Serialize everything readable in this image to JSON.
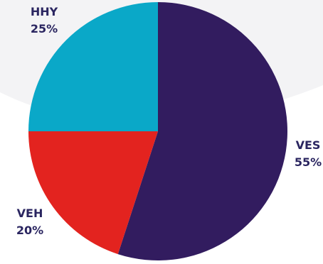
{
  "chart_data": {
    "type": "pie",
    "slices": [
      {
        "label": "VES",
        "value": 55,
        "value_label": "55%",
        "color": "#321c5f"
      },
      {
        "label": "VEH",
        "value": 20,
        "value_label": "20%",
        "color": "#e3231f"
      },
      {
        "label": "HHY",
        "value": 25,
        "value_label": "25%",
        "color": "#0aa8c8"
      }
    ],
    "start_angle_deg": 0,
    "direction": "clockwise",
    "background_color": "#ffffff",
    "backdrop_color": "#f3f3f5"
  }
}
